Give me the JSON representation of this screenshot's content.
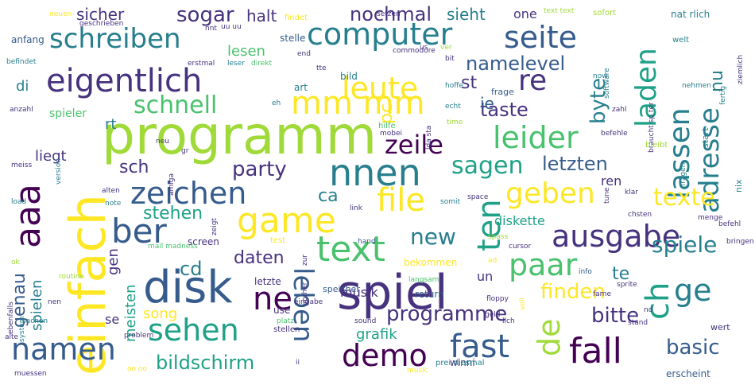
{
  "cloud": {
    "palette": [
      "#440154",
      "#46327e",
      "#365c8d",
      "#277f8e",
      "#1fa187",
      "#4ac16d",
      "#a0da39",
      "#fde725"
    ],
    "words": [
      {
        "text": "programm",
        "color": "#a0da39"
      },
      {
        "text": "spiel",
        "color": "#46327e"
      },
      {
        "text": "einfach",
        "color": "#fde725"
      },
      {
        "text": "disk",
        "color": "#365c8d"
      },
      {
        "text": "game",
        "color": "#fde725"
      },
      {
        "text": "mm mm",
        "color": "#fde725"
      },
      {
        "text": "eigentlich",
        "color": "#46327e"
      },
      {
        "text": "computer",
        "color": "#277f8e"
      },
      {
        "text": "nnen",
        "color": "#277f8e"
      },
      {
        "text": "aaa",
        "color": "#440154"
      },
      {
        "text": "text",
        "color": "#4ac16d"
      },
      {
        "text": "fall",
        "color": "#440154"
      },
      {
        "text": "schreiben",
        "color": "#277f8e"
      },
      {
        "text": "leute",
        "color": "#fde725"
      },
      {
        "text": "seite",
        "color": "#365c8d"
      },
      {
        "text": "file",
        "color": "#fde725"
      },
      {
        "text": "zeichen",
        "color": "#365c8d"
      },
      {
        "text": "ausgabe",
        "color": "#46327e"
      },
      {
        "text": "demo",
        "color": "#440154"
      },
      {
        "text": "fast",
        "color": "#365c8d"
      },
      {
        "text": "leider",
        "color": "#4ac16d"
      },
      {
        "text": "laden",
        "color": "#1fa187"
      },
      {
        "text": "lassen",
        "color": "#277f8e"
      },
      {
        "text": "adresse",
        "color": "#277f8e"
      },
      {
        "text": "ten",
        "color": "#1fa187"
      },
      {
        "text": "geben",
        "color": "#fde725"
      },
      {
        "text": "ber",
        "color": "#365c8d"
      },
      {
        "text": "ne",
        "color": "#440154"
      },
      {
        "text": "sehen",
        "color": "#1fa187"
      },
      {
        "text": "namen",
        "color": "#365c8d"
      },
      {
        "text": "leben",
        "color": "#365c8d"
      },
      {
        "text": "paar",
        "color": "#4ac16d"
      },
      {
        "text": "de",
        "color": "#a0da39"
      },
      {
        "text": "ch",
        "color": "#1fa187"
      },
      {
        "text": "ge",
        "color": "#277f8e"
      },
      {
        "text": "re",
        "color": "#46327e"
      },
      {
        "text": "zeile",
        "color": "#440154"
      },
      {
        "text": "sagen",
        "color": "#1fa187"
      },
      {
        "text": "schnell",
        "color": "#4ac16d"
      },
      {
        "text": "texte",
        "color": "#fde725"
      },
      {
        "text": "spiele",
        "color": "#277f8e"
      },
      {
        "text": "bildschirm",
        "color": "#1fa187"
      },
      {
        "text": "basic",
        "color": "#365c8d"
      },
      {
        "text": "bitte",
        "color": "#46327e"
      },
      {
        "text": "finden",
        "color": "#fde725"
      },
      {
        "text": "programme",
        "color": "#46327e"
      },
      {
        "text": "new",
        "color": "#277f8e"
      },
      {
        "text": "party",
        "color": "#46327e"
      },
      {
        "text": "namelevel",
        "color": "#365c8d"
      },
      {
        "text": "letzten",
        "color": "#365c8d"
      },
      {
        "text": "sogar",
        "color": "#46327e"
      },
      {
        "text": "taste",
        "color": "#46327e"
      },
      {
        "text": "byte",
        "color": "#277f8e"
      },
      {
        "text": "nochmal",
        "color": "#46327e"
      },
      {
        "text": "sieht",
        "color": "#277f8e"
      },
      {
        "text": "halt",
        "color": "#46327e"
      },
      {
        "text": "sicher",
        "color": "#46327e"
      },
      {
        "text": "cd",
        "color": "#277f8e"
      },
      {
        "text": "daten",
        "color": "#46327e"
      },
      {
        "text": "stehen",
        "color": "#1fa187"
      },
      {
        "text": "diskette",
        "color": "#1fa187"
      },
      {
        "text": "genau",
        "color": "#365c8d"
      },
      {
        "text": "spielen",
        "color": "#277f8e"
      },
      {
        "text": "meisten",
        "color": "#1fa187"
      },
      {
        "text": "ca",
        "color": "#277f8e"
      },
      {
        "text": "sch",
        "color": "#46327e"
      },
      {
        "text": "pc",
        "color": "#fde725"
      },
      {
        "text": "st",
        "color": "#46327e"
      },
      {
        "text": "ie",
        "color": "#365c8d"
      },
      {
        "text": "nu",
        "color": "#277f8e"
      },
      {
        "text": "te",
        "color": "#277f8e"
      },
      {
        "text": "liegt",
        "color": "#46327e"
      },
      {
        "text": "lesen",
        "color": "#4ac16d"
      },
      {
        "text": "musik",
        "color": "#46327e"
      },
      {
        "text": "grafik",
        "color": "#1fa187"
      },
      {
        "text": "song",
        "color": "#fde725"
      },
      {
        "text": "gen",
        "color": "#46327e"
      },
      {
        "text": "di",
        "color": "#277f8e"
      },
      {
        "text": "rt",
        "color": "#277f8e"
      },
      {
        "text": "one",
        "color": "#46327e"
      },
      {
        "text": "ren",
        "color": "#46327e"
      },
      {
        "text": "un",
        "color": "#46327e"
      },
      {
        "text": "se",
        "color": "#46327e"
      },
      {
        "text": "erscheint",
        "color": "#365c8d"
      },
      {
        "text": "bekommen",
        "color": "#fde725"
      },
      {
        "text": "screen",
        "color": "#46327e"
      },
      {
        "text": "spieler",
        "color": "#4ac16d"
      },
      {
        "text": "frage",
        "color": "#365c8d"
      },
      {
        "text": "stelle",
        "color": "#365c8d"
      },
      {
        "text": "anfang",
        "color": "#365c8d"
      },
      {
        "text": "letzte",
        "color": "#46327e"
      },
      {
        "text": "return",
        "color": "#365c8d"
      },
      {
        "text": "speicher",
        "color": "#365c8d"
      },
      {
        "text": "winni",
        "color": "#46327e"
      },
      {
        "text": "bild",
        "color": "#277f8e"
      },
      {
        "text": "art",
        "color": "#277f8e"
      },
      {
        "text": "use",
        "color": "#46327e"
      },
      {
        "text": "nat rlich",
        "color": "#277f8e"
      },
      {
        "text": "welt",
        "color": "#277f8e"
      },
      {
        "text": "start",
        "color": "#277f8e"
      },
      {
        "text": "nix",
        "color": "#277f8e"
      },
      {
        "text": "wert",
        "color": "#46327e"
      },
      {
        "text": "findet",
        "color": "#fde725"
      },
      {
        "text": "setzen",
        "color": "#46327e"
      },
      {
        "text": "neuen",
        "color": "#fde725"
      },
      {
        "text": "sofort",
        "color": "#a0da39"
      },
      {
        "text": "text text",
        "color": "#a0da39"
      },
      {
        "text": "geschrieben",
        "color": "#46327e"
      },
      {
        "text": "nnt",
        "color": "#46327e"
      },
      {
        "text": "uu uu",
        "color": "#46327e"
      },
      {
        "text": "end",
        "color": "#46327e"
      },
      {
        "text": "commodore",
        "color": "#46327e"
      },
      {
        "text": "befindet",
        "color": "#277f8e"
      },
      {
        "text": "erstmal",
        "color": "#46327e"
      },
      {
        "text": "leser",
        "color": "#277f8e"
      },
      {
        "text": "direkt",
        "color": "#4ac16d"
      },
      {
        "text": "anzahl",
        "color": "#46327e"
      },
      {
        "text": "eh",
        "color": "#277f8e"
      },
      {
        "text": "hoffe",
        "color": "#277f8e"
      },
      {
        "text": "echt",
        "color": "#277f8e"
      },
      {
        "text": "zahl",
        "color": "#46327e"
      },
      {
        "text": "braucht sp ter",
        "color": "#46327e"
      },
      {
        "text": "hilfe",
        "color": "#4ac16d"
      },
      {
        "text": "time",
        "color": "#a0da39"
      },
      {
        "text": "mobei",
        "color": "#46327e"
      },
      {
        "text": "befehle",
        "color": "#46327e"
      },
      {
        "text": "bleibt",
        "color": "#a0da39"
      },
      {
        "text": "meiss",
        "color": "#46327e"
      },
      {
        "text": "version",
        "color": "#277f8e"
      },
      {
        "text": "neu",
        "color": "#46327e"
      },
      {
        "text": "amiga",
        "color": "#46327e"
      },
      {
        "text": "alten",
        "color": "#46327e"
      },
      {
        "text": "note",
        "color": "#277f8e"
      },
      {
        "text": "load",
        "color": "#277f8e"
      },
      {
        "text": "zeigt",
        "color": "#46327e"
      },
      {
        "text": "link",
        "color": "#46327e"
      },
      {
        "text": "somit",
        "color": "#277f8e"
      },
      {
        "text": "space",
        "color": "#46327e"
      },
      {
        "text": "klar",
        "color": "#46327e"
      },
      {
        "text": "fragen",
        "color": "#277f8e"
      },
      {
        "text": "tune",
        "color": "#46327e"
      },
      {
        "text": "chsten",
        "color": "#46327e"
      },
      {
        "text": "menge",
        "color": "#46327e"
      },
      {
        "text": "befehl",
        "color": "#46327e"
      },
      {
        "text": "bringen",
        "color": "#46327e"
      },
      {
        "text": "test",
        "color": "#fde725"
      },
      {
        "text": "hand",
        "color": "#365c8d"
      },
      {
        "text": "spass",
        "color": "#a0da39"
      },
      {
        "text": "cursor",
        "color": "#46327e"
      },
      {
        "text": "info",
        "color": "#365c8d"
      },
      {
        "text": "sprite",
        "color": "#46327e"
      },
      {
        "text": "fame",
        "color": "#46327e"
      },
      {
        "text": "mail madness",
        "color": "#4ac16d"
      },
      {
        "text": "ok",
        "color": "#a0da39"
      },
      {
        "text": "routine",
        "color": "#a0da39"
      },
      {
        "text": "langsam",
        "color": "#4ac16d"
      },
      {
        "text": "floppy",
        "color": "#46327e"
      },
      {
        "text": "nd",
        "color": "#46327e"
      },
      {
        "text": "ebenfalls",
        "color": "#46327e"
      },
      {
        "text": "system",
        "color": "#277f8e"
      },
      {
        "text": "alte",
        "color": "#46327e"
      },
      {
        "text": "sachen",
        "color": "#277f8e"
      },
      {
        "text": "problem",
        "color": "#46327e"
      },
      {
        "text": "eingabe",
        "color": "#46327e"
      },
      {
        "text": "platz",
        "color": "#4ac16d"
      },
      {
        "text": "stellen",
        "color": "#46327e"
      },
      {
        "text": "sound",
        "color": "#46327e"
      },
      {
        "text": "geld",
        "color": "#46327e"
      },
      {
        "text": "lich",
        "color": "#46327e"
      },
      {
        "text": "stand",
        "color": "#46327e"
      },
      {
        "text": "muessen",
        "color": "#46327e"
      },
      {
        "text": "oo oo",
        "color": "#fde725"
      },
      {
        "text": "music",
        "color": "#fde725"
      },
      {
        "text": "prei diesmal",
        "color": "#277f8e"
      },
      {
        "text": "nen",
        "color": "#46327e"
      },
      {
        "text": "vorher",
        "color": "#46327e"
      },
      {
        "text": "zur",
        "color": "#46327e"
      },
      {
        "text": "voll",
        "color": "#fde725"
      },
      {
        "text": "ad",
        "color": "#fde725"
      },
      {
        "text": "fertig",
        "color": "#277f8e"
      },
      {
        "text": "nehmen",
        "color": "#277f8e"
      },
      {
        "text": "software",
        "color": "#277f8e"
      },
      {
        "text": "ziemlich",
        "color": "#46327e"
      },
      {
        "text": "now",
        "color": "#277f8e"
      },
      {
        "text": "bit",
        "color": "#46327e"
      },
      {
        "text": "us",
        "color": "#46327e"
      },
      {
        "text": "ver",
        "color": "#a0da39"
      },
      {
        "text": "tte",
        "color": "#46327e"
      },
      {
        "text": "lda sta",
        "color": "#46327e"
      },
      {
        "text": "gr",
        "color": "#46327e"
      },
      {
        "text": "ii",
        "color": "#46327e"
      }
    ]
  }
}
